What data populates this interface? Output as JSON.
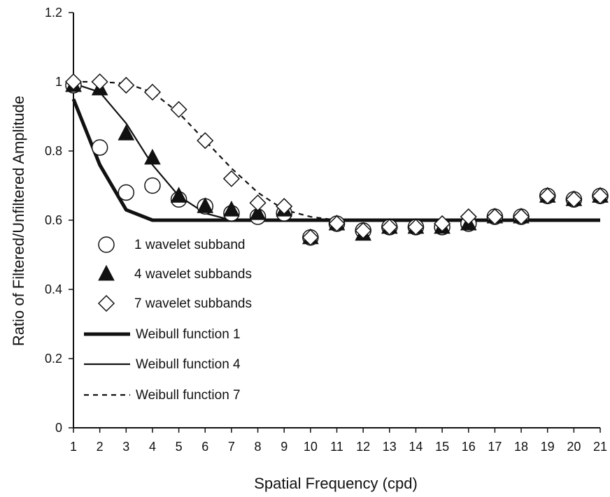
{
  "chart_data": {
    "type": "scatter",
    "title": "",
    "xlabel": "Spatial Frequency (cpd)",
    "ylabel": "Ratio of Filtered/Unfiltered Amplitude",
    "xlim": [
      1,
      21
    ],
    "ylim": [
      0,
      1.2
    ],
    "x_ticks": [
      "1",
      "2",
      "3",
      "4",
      "5",
      "6",
      "7",
      "8",
      "9",
      "10",
      "11",
      "12",
      "13",
      "14",
      "15",
      "16",
      "17",
      "18",
      "19",
      "20",
      "21"
    ],
    "y_ticks": [
      "0",
      "0.2",
      "0.4",
      "0.6",
      "0.8",
      "1",
      "1.2"
    ],
    "y_tick_values": [
      0,
      0.2,
      0.4,
      0.6,
      0.8,
      1.0,
      1.2
    ],
    "grid": false,
    "legend_position": "left, inside plot area",
    "x": [
      1,
      2,
      3,
      4,
      5,
      6,
      7,
      8,
      9,
      10,
      11,
      12,
      13,
      14,
      15,
      16,
      17,
      18,
      19,
      20,
      21
    ],
    "series": [
      {
        "name": "1 wavelet subband",
        "kind": "points",
        "marker": "open-circle",
        "values": [
          0.99,
          0.81,
          0.68,
          0.7,
          0.66,
          0.64,
          0.62,
          0.61,
          0.62,
          0.55,
          0.59,
          0.57,
          0.58,
          0.58,
          0.58,
          0.59,
          0.61,
          0.61,
          0.67,
          0.66,
          0.67
        ]
      },
      {
        "name": "4 wavelet subbands",
        "kind": "points",
        "marker": "filled-triangle",
        "values": [
          0.99,
          0.98,
          0.85,
          0.78,
          0.67,
          0.64,
          0.63,
          0.62,
          0.63,
          0.55,
          0.59,
          0.56,
          0.58,
          0.58,
          0.58,
          0.59,
          0.61,
          0.61,
          0.67,
          0.66,
          0.67
        ]
      },
      {
        "name": "7 wavelet subbands",
        "kind": "points",
        "marker": "open-diamond",
        "values": [
          1.0,
          1.0,
          0.99,
          0.97,
          0.92,
          0.83,
          0.72,
          0.65,
          0.64,
          0.55,
          0.59,
          0.57,
          0.58,
          0.58,
          0.59,
          0.61,
          0.61,
          0.61,
          0.67,
          0.66,
          0.67
        ]
      },
      {
        "name": "Weibull function 1",
        "kind": "line",
        "style": "thick",
        "values": [
          0.95,
          0.76,
          0.63,
          0.6,
          0.6,
          0.6,
          0.6,
          0.6,
          0.6,
          0.6,
          0.6,
          0.6,
          0.6,
          0.6,
          0.6,
          0.6,
          0.6,
          0.6,
          0.6,
          0.6,
          0.6
        ]
      },
      {
        "name": "Weibull function 4",
        "kind": "line",
        "style": "thin",
        "values": [
          0.995,
          0.97,
          0.88,
          0.76,
          0.67,
          0.62,
          0.6,
          0.6,
          0.6,
          0.6,
          0.6,
          0.6,
          0.6,
          0.6,
          0.6,
          0.6,
          0.6,
          0.6,
          0.6,
          0.6,
          0.6
        ]
      },
      {
        "name": "Weibull function 7",
        "kind": "line",
        "style": "dashed",
        "values": [
          1.0,
          1.0,
          0.995,
          0.97,
          0.91,
          0.83,
          0.75,
          0.68,
          0.63,
          0.61,
          0.6,
          0.6,
          0.6,
          0.6,
          0.6,
          0.6,
          0.6,
          0.6,
          0.6,
          0.6,
          0.6
        ]
      }
    ],
    "colors": {
      "ink": "#111111",
      "background": "#ffffff"
    }
  }
}
